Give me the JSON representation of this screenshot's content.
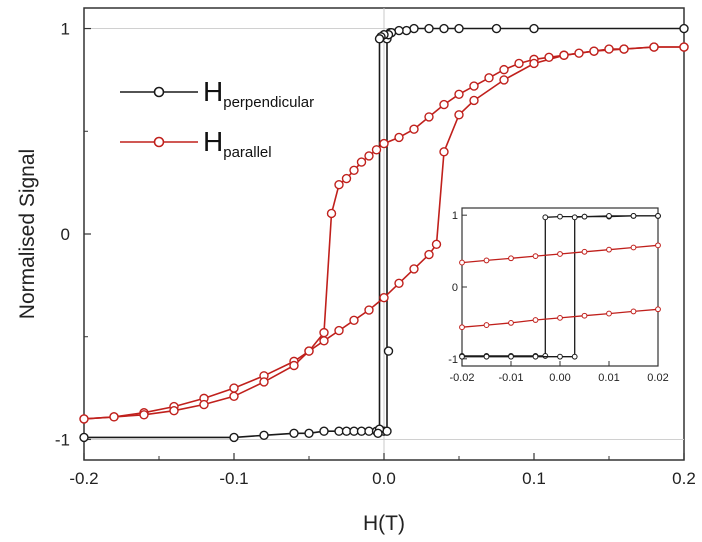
{
  "chart_data": {
    "type": "scatter",
    "title": "",
    "xlabel": "H(T)",
    "ylabel": "Normalised Signal",
    "xlim": [
      -0.2,
      0.2
    ],
    "ylim": [
      -1.1,
      1.1
    ],
    "x_ticks": [
      "-0.2",
      "-0.1",
      "0.0",
      "0.1",
      "0.2"
    ],
    "y_ticks": [
      "-1",
      "0",
      "1"
    ],
    "grid": false,
    "legend_position": "top-left",
    "series": [
      {
        "name": "H_perpendicular",
        "label_main": "H",
        "label_sub": "perpendicular",
        "color": "#1a1a1a",
        "marker": "open-circle",
        "branches": [
          {
            "x": [
              -0.2,
              -0.1,
              -0.08,
              -0.06,
              -0.05,
              -0.04,
              -0.03,
              -0.025,
              -0.02,
              -0.015,
              -0.01,
              -0.005,
              0.0,
              0.002,
              0.002,
              0.003,
              0.004
            ],
            "y": [
              -0.99,
              -0.99,
              -0.98,
              -0.97,
              -0.97,
              -0.96,
              -0.96,
              -0.96,
              -0.96,
              -0.96,
              -0.96,
              -0.96,
              -0.96,
              -0.96,
              0.95,
              0.97,
              0.98
            ]
          },
          {
            "x": [
              0.2,
              0.1,
              0.075,
              0.05,
              0.04,
              0.03,
              0.02,
              0.015,
              0.01,
              0.005,
              0.003,
              0.0,
              -0.002,
              -0.003,
              -0.003,
              -0.004
            ],
            "y": [
              1.0,
              1.0,
              1.0,
              1.0,
              1.0,
              1.0,
              1.0,
              0.99,
              0.99,
              0.98,
              0.97,
              0.97,
              0.96,
              0.95,
              -0.95,
              -0.97
            ]
          }
        ],
        "extra_points": {
          "x": [
            0.003
          ],
          "y": [
            -0.57
          ]
        }
      },
      {
        "name": "H_parallel",
        "label_main": "H",
        "label_sub": "parallel",
        "color": "#c0201c",
        "marker": "open-circle",
        "branches": [
          {
            "x": [
              0.2,
              0.18,
              0.16,
              0.15,
              0.14,
              0.13,
              0.12,
              0.11,
              0.1,
              0.09,
              0.08,
              0.07,
              0.06,
              0.05,
              0.04,
              0.03,
              0.02,
              0.01,
              0.0,
              -0.005,
              -0.01,
              -0.015,
              -0.02,
              -0.025,
              -0.03,
              -0.035,
              -0.04,
              -0.05,
              -0.06,
              -0.08,
              -0.1,
              -0.12,
              -0.14,
              -0.16,
              -0.18,
              -0.2
            ],
            "y": [
              0.91,
              0.91,
              0.9,
              0.9,
              0.89,
              0.88,
              0.87,
              0.86,
              0.85,
              0.83,
              0.8,
              0.76,
              0.72,
              0.68,
              0.63,
              0.57,
              0.51,
              0.47,
              0.44,
              0.41,
              0.38,
              0.35,
              0.31,
              0.27,
              0.24,
              0.1,
              -0.48,
              -0.57,
              -0.62,
              -0.69,
              -0.75,
              -0.8,
              -0.84,
              -0.87,
              -0.89,
              -0.9
            ]
          },
          {
            "x": [
              -0.2,
              -0.18,
              -0.16,
              -0.14,
              -0.12,
              -0.1,
              -0.08,
              -0.06,
              -0.05,
              -0.04,
              -0.03,
              -0.02,
              -0.01,
              0.0,
              0.01,
              0.02,
              0.03,
              0.035,
              0.04,
              0.05,
              0.06,
              0.08,
              0.1,
              0.12,
              0.14,
              0.16,
              0.18,
              0.2
            ],
            "y": [
              -0.9,
              -0.89,
              -0.88,
              -0.86,
              -0.83,
              -0.79,
              -0.72,
              -0.64,
              -0.57,
              -0.52,
              -0.47,
              -0.42,
              -0.37,
              -0.31,
              -0.24,
              -0.17,
              -0.1,
              -0.05,
              0.4,
              0.58,
              0.65,
              0.75,
              0.83,
              0.87,
              0.89,
              0.9,
              0.91,
              0.91
            ]
          }
        ]
      }
    ],
    "inset": {
      "xlim": [
        -0.02,
        0.02
      ],
      "ylim": [
        -1.1,
        1.1
      ],
      "x_ticks": [
        "-0.02",
        "-0.01",
        "0.00",
        "0.01",
        "0.02"
      ],
      "y_ticks": [
        "-1",
        "0",
        "1"
      ],
      "series": [
        {
          "name": "H_perpendicular",
          "color": "#1a1a1a",
          "branches": [
            {
              "x": [
                -0.02,
                -0.015,
                -0.01,
                -0.005,
                -0.003,
                -0.003,
                0.0,
                0.005,
                0.01,
                0.015,
                0.02
              ],
              "y": [
                -0.96,
                -0.96,
                -0.96,
                -0.96,
                -0.96,
                0.97,
                0.98,
                0.98,
                0.98,
                0.99,
                0.99
              ]
            },
            {
              "x": [
                0.02,
                0.015,
                0.01,
                0.005,
                0.003,
                0.003,
                0.0,
                -0.005,
                -0.01,
                -0.015,
                -0.02
              ],
              "y": [
                0.99,
                0.99,
                0.99,
                0.98,
                0.97,
                -0.97,
                -0.97,
                -0.97,
                -0.97,
                -0.97,
                -0.97
              ]
            }
          ]
        },
        {
          "name": "H_parallel",
          "color": "#c0201c",
          "branches": [
            {
              "x": [
                -0.02,
                -0.015,
                -0.01,
                -0.005,
                0.0,
                0.005,
                0.01,
                0.015,
                0.02
              ],
              "y": [
                0.34,
                0.37,
                0.4,
                0.43,
                0.46,
                0.49,
                0.52,
                0.55,
                0.58
              ]
            },
            {
              "x": [
                -0.02,
                -0.015,
                -0.01,
                -0.005,
                0.0,
                0.005,
                0.01,
                0.015,
                0.02
              ],
              "y": [
                -0.56,
                -0.53,
                -0.5,
                -0.46,
                -0.43,
                -0.4,
                -0.37,
                -0.34,
                -0.31
              ]
            }
          ]
        }
      ]
    }
  }
}
